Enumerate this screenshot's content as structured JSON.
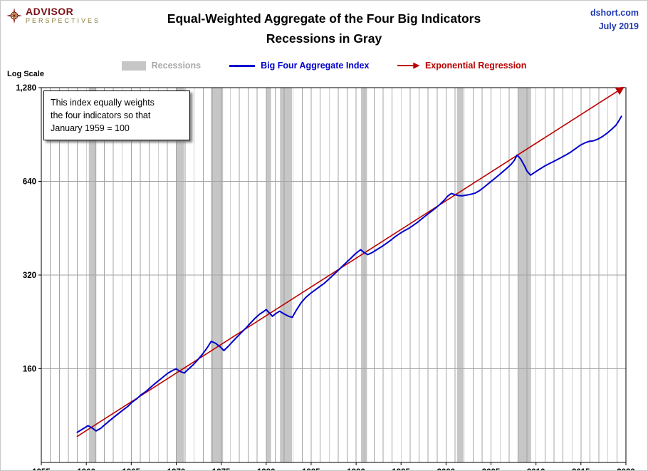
{
  "header": {
    "logo_line1": "ADVISOR",
    "logo_line2": "PERSPECTIVES",
    "title_line1": "Equal-Weighted Aggregate of the Four Big Indicators",
    "title_line2": "Recessions in Gray",
    "source_line1": "dshort.com",
    "source_line2": "July 2019"
  },
  "legend": {
    "recessions_label": "Recessions",
    "aggregate_label": "Big Four Aggregate Index",
    "regression_label": "Exponential Regression"
  },
  "annotation": {
    "line1": "This index equally weights",
    "line2": "the four indicators so that",
    "line3": "January 1959 = 100"
  },
  "axis_note": "Log Scale",
  "colors": {
    "aggregate": "#0000cc",
    "regression": "#bb0000",
    "recession_band": "#c6c6c6",
    "grid": "#a3a3a3",
    "axis": "#000000",
    "source_text": "#2038b0",
    "logo_maroon": "#7a1018",
    "logo_gold": "#8a7d3a"
  },
  "chart_data": {
    "type": "line",
    "title": "Equal-Weighted Aggregate of the Four Big Indicators",
    "subtitle": "Recessions in Gray",
    "y_scale": "log",
    "xlim": [
      1955,
      2020
    ],
    "ylim": [
      80,
      1280
    ],
    "x_ticks": [
      1955,
      1960,
      1965,
      1970,
      1975,
      1980,
      1985,
      1990,
      1995,
      2000,
      2005,
      2010,
      2015,
      2020
    ],
    "y_ticks": [
      {
        "value": 1280,
        "label": "1,280"
      },
      {
        "value": 640,
        "label": "640"
      },
      {
        "value": 320,
        "label": "320"
      },
      {
        "value": 160,
        "label": "160"
      }
    ],
    "grid": "yearly-vertical and power-of-two horizontal",
    "legend_position": "top-center",
    "recessions": [
      [
        1960.29,
        1961.12
      ],
      [
        1969.96,
        1970.87
      ],
      [
        1973.87,
        1975.21
      ],
      [
        1980.04,
        1980.54
      ],
      [
        1981.54,
        1982.87
      ],
      [
        1990.54,
        1991.21
      ],
      [
        2001.21,
        2001.87
      ],
      [
        2007.96,
        2009.46
      ]
    ],
    "series": [
      {
        "name": "Big Four Aggregate Index",
        "color": "#0000cc",
        "width": 2,
        "x": [
          1959.0,
          1959.5,
          1960.2,
          1960.7,
          1961.1,
          1961.6,
          1962.1,
          1962.6,
          1963.1,
          1963.6,
          1964.1,
          1964.6,
          1965.1,
          1965.6,
          1966.1,
          1966.6,
          1967.1,
          1967.6,
          1968.1,
          1968.6,
          1969.1,
          1969.6,
          1970.0,
          1970.4,
          1970.9,
          1971.4,
          1971.9,
          1972.4,
          1972.9,
          1973.4,
          1973.9,
          1974.4,
          1974.9,
          1975.3,
          1975.8,
          1976.3,
          1976.8,
          1977.3,
          1977.8,
          1978.3,
          1978.8,
          1979.3,
          1979.7,
          1980.0,
          1980.4,
          1980.7,
          1981.1,
          1981.5,
          1982.0,
          1982.5,
          1982.9,
          1983.4,
          1983.9,
          1984.4,
          1984.9,
          1985.4,
          1985.9,
          1986.4,
          1986.9,
          1987.4,
          1987.9,
          1988.4,
          1988.9,
          1989.4,
          1989.9,
          1990.5,
          1991.0,
          1991.3,
          1991.8,
          1992.3,
          1992.8,
          1993.3,
          1993.8,
          1994.3,
          1994.8,
          1995.3,
          1995.8,
          1996.3,
          1996.8,
          1997.3,
          1997.8,
          1998.3,
          1998.8,
          1999.3,
          1999.8,
          2000.2,
          2000.6,
          2001.0,
          2001.4,
          2001.8,
          2002.3,
          2002.8,
          2003.2,
          2003.7,
          2004.2,
          2004.7,
          2005.2,
          2005.7,
          2006.2,
          2006.7,
          2007.2,
          2007.6,
          2007.9,
          2008.3,
          2008.7,
          2009.0,
          2009.4,
          2009.9,
          2010.4,
          2010.9,
          2011.4,
          2011.9,
          2012.4,
          2012.9,
          2013.4,
          2013.9,
          2014.4,
          2014.9,
          2015.4,
          2015.9,
          2016.4,
          2016.9,
          2017.4,
          2017.9,
          2018.4,
          2018.9,
          2019.2,
          2019.5
        ],
        "y": [
          100,
          102,
          105,
          103,
          101,
          103,
          106,
          109,
          112,
          115,
          118,
          121,
          125,
          128,
          132,
          135,
          139,
          143,
          147,
          151,
          155,
          158,
          160,
          157,
          155,
          160,
          165,
          171,
          178,
          186,
          196,
          193,
          188,
          183,
          189,
          196,
          203,
          210,
          217,
          225,
          233,
          240,
          244,
          248,
          241,
          236,
          241,
          245,
          240,
          236,
          234,
          248,
          261,
          271,
          279,
          286,
          293,
          300,
          309,
          319,
          329,
          340,
          351,
          362,
          374,
          386,
          376,
          372,
          378,
          386,
          394,
          403,
          413,
          424,
          434,
          443,
          451,
          461,
          472,
          485,
          498,
          511,
          524,
          539,
          557,
          574,
          585,
          580,
          576,
          575,
          578,
          582,
          586,
          597,
          612,
          629,
          646,
          664,
          683,
          703,
          724,
          748,
          778,
          755,
          720,
          690,
          670,
          685,
          700,
          715,
          728,
          740,
          753,
          766,
          780,
          796,
          815,
          835,
          850,
          860,
          864,
          875,
          892,
          914,
          940,
          970,
          1000,
          1035
        ]
      },
      {
        "name": "Exponential Regression",
        "color": "#bb0000",
        "width": 1.6,
        "arrow_end": true,
        "x": [
          1959.0,
          2019.6
        ],
        "y": [
          97,
          1275
        ]
      }
    ]
  }
}
